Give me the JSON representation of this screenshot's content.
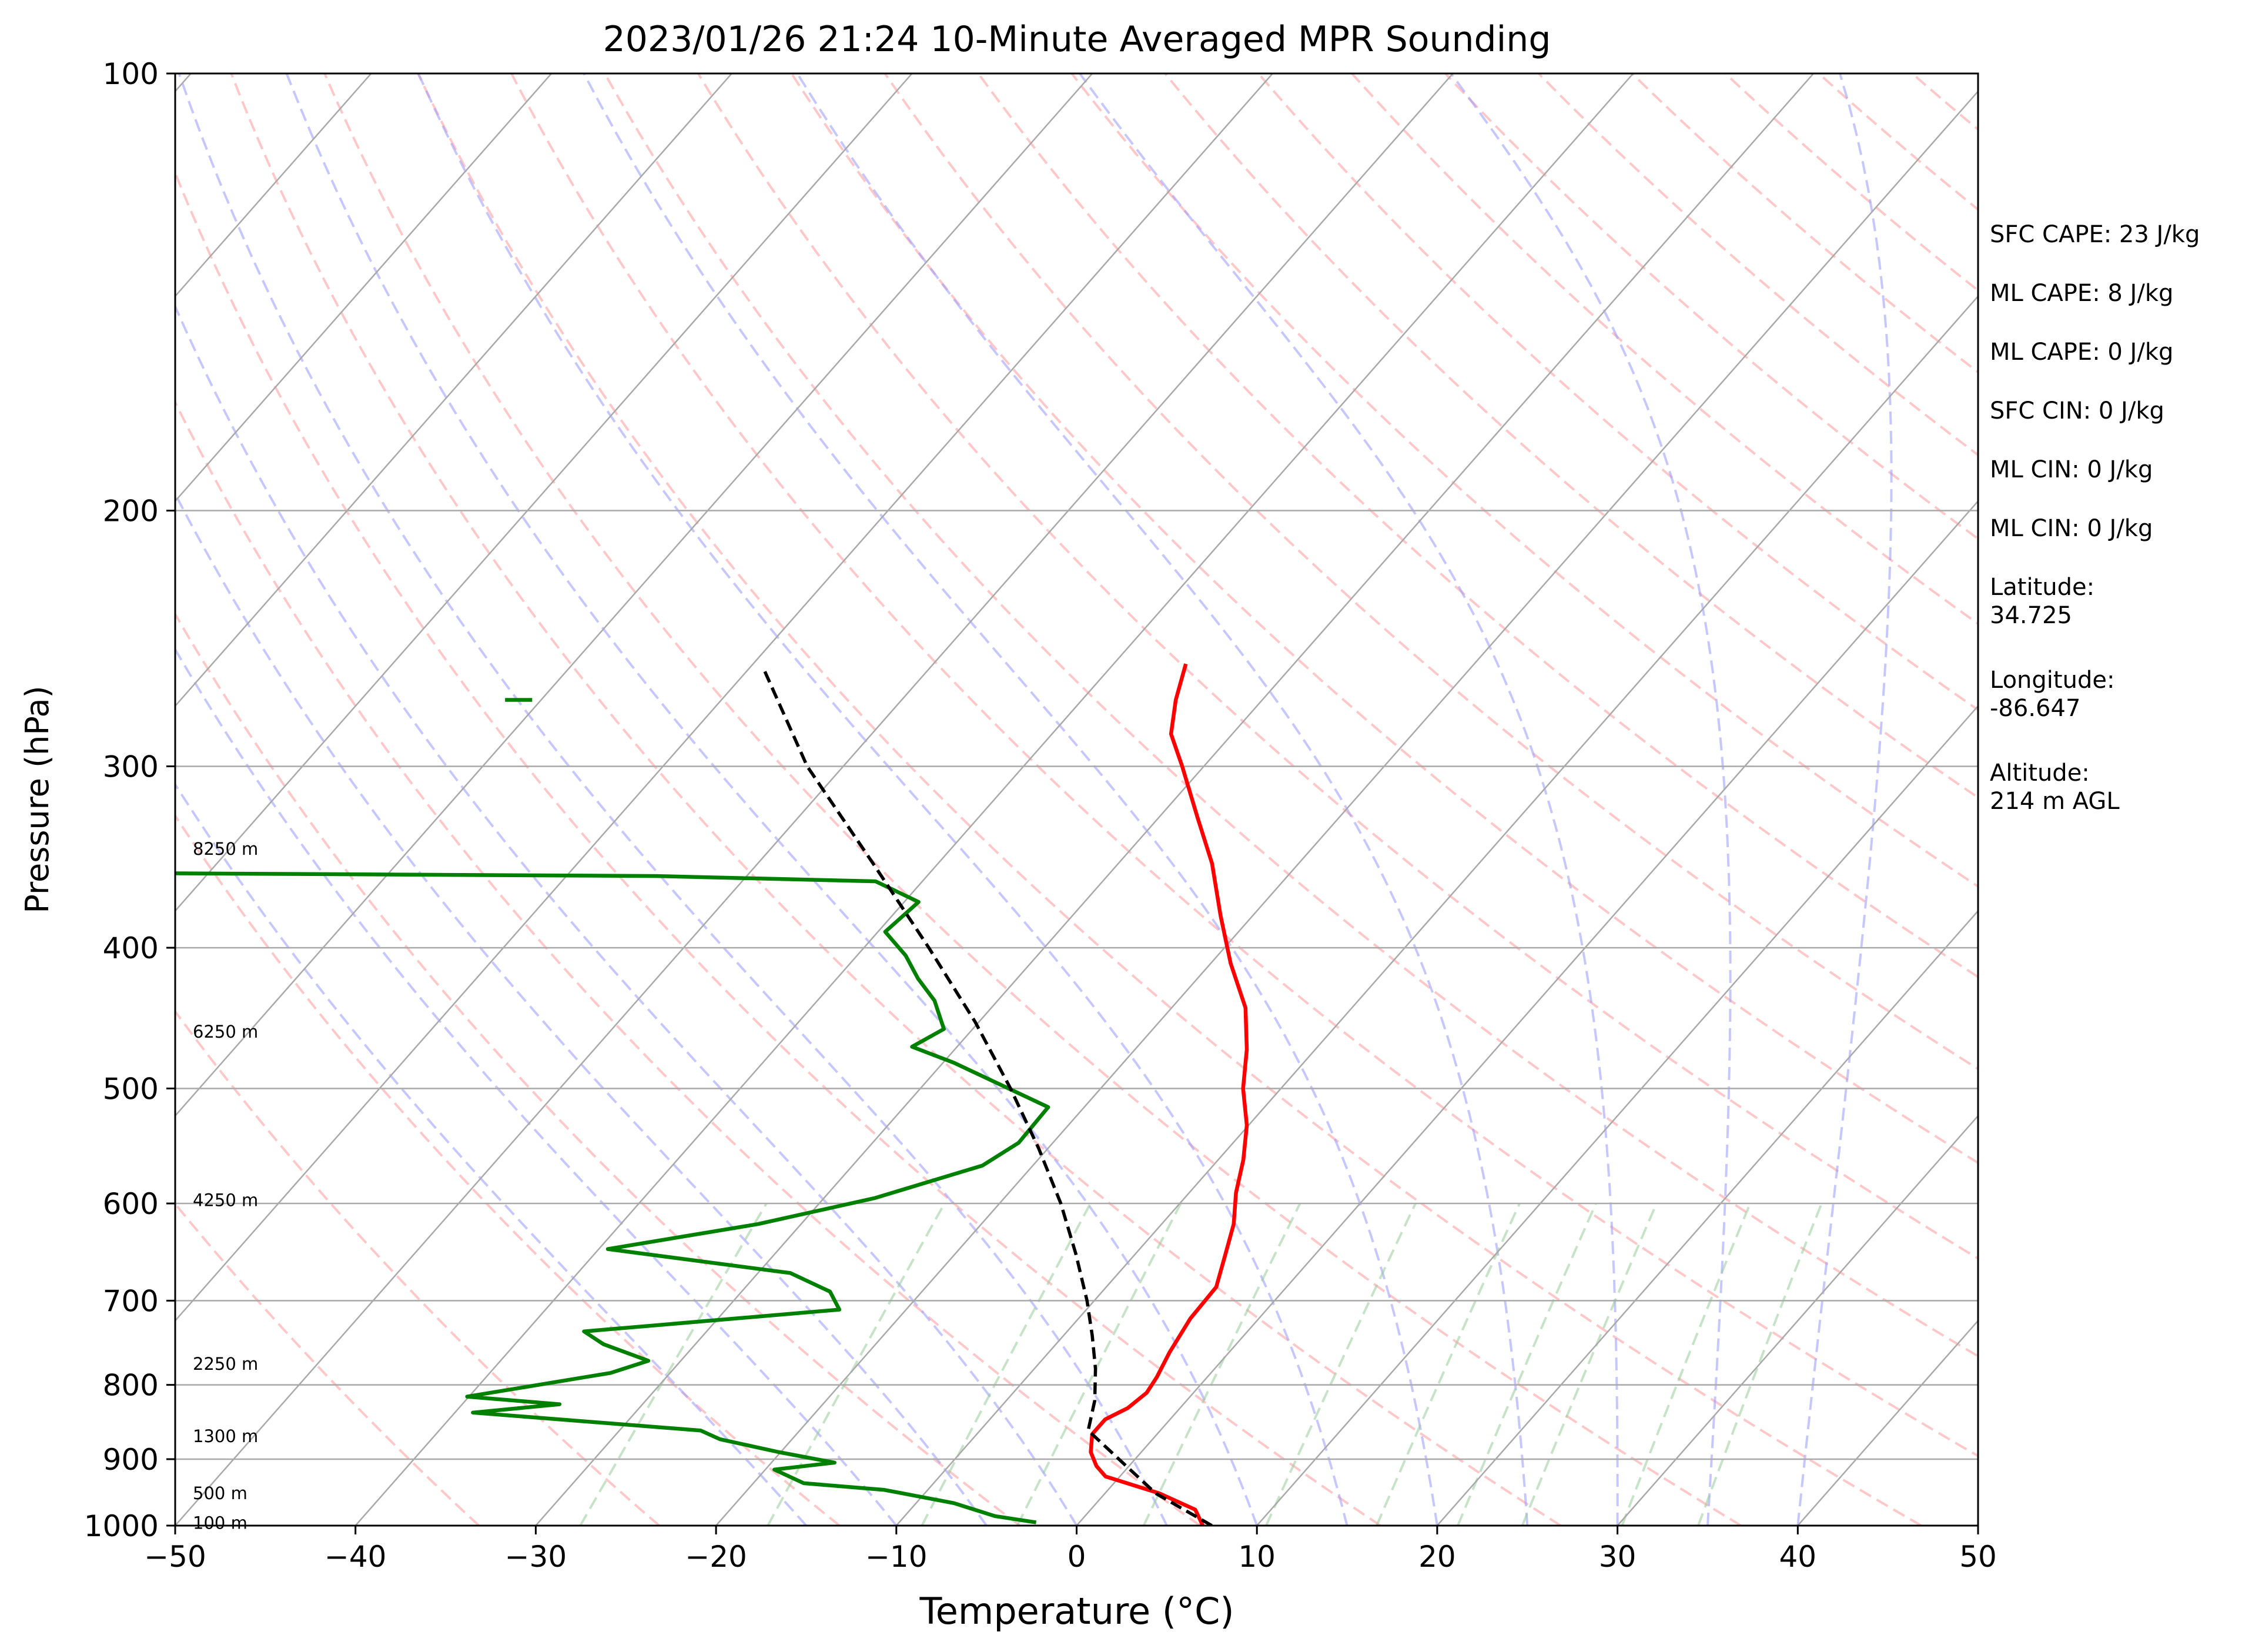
{
  "chart_data": {
    "type": "line",
    "title": "2023/01/26 21:24 10-Minute Averaged MPR Sounding",
    "xlabel": "Temperature (°C)",
    "ylabel": "Pressure (hPa)",
    "xlim": [
      -50,
      50
    ],
    "ylim": [
      1000,
      100
    ],
    "y_scale": "log",
    "skew": "skew-T log-p",
    "x_ticks": [
      "−50",
      "−40",
      "−30",
      "−20",
      "−10",
      "0",
      "10",
      "20",
      "30",
      "40",
      "50"
    ],
    "x_tick_values": [
      -50,
      -40,
      -30,
      -20,
      -10,
      0,
      10,
      20,
      30,
      40,
      50
    ],
    "y_ticks": [
      "1000",
      "900",
      "800",
      "700",
      "600",
      "500",
      "400",
      "300",
      "200",
      "100"
    ],
    "y_tick_values": [
      1000,
      900,
      800,
      700,
      600,
      500,
      400,
      300,
      200,
      100
    ],
    "grid": true,
    "colors": {
      "temperature": "#ff0000",
      "dewpoint": "#008000",
      "parcel": "#000000",
      "isotherm": "#a9a9a9",
      "isobar": "#a9a9a9",
      "dry_adiabat": "#ff9999",
      "moist_adiabat": "#9999ff",
      "mixing_ratio": "#99cc99"
    },
    "series": [
      {
        "key": "temperature",
        "points": [
          {
            "p": 1000,
            "t": 7.0
          },
          {
            "p": 975,
            "t": 5.8
          },
          {
            "p": 950,
            "t": 3.0
          },
          {
            "p": 925,
            "t": -0.8
          },
          {
            "p": 910,
            "t": -1.8
          },
          {
            "p": 890,
            "t": -2.8
          },
          {
            "p": 865,
            "t": -3.6
          },
          {
            "p": 845,
            "t": -3.6
          },
          {
            "p": 830,
            "t": -2.9
          },
          {
            "p": 810,
            "t": -2.6
          },
          {
            "p": 790,
            "t": -2.8
          },
          {
            "p": 760,
            "t": -3.3
          },
          {
            "p": 720,
            "t": -3.8
          },
          {
            "p": 685,
            "t": -3.9
          },
          {
            "p": 650,
            "t": -5.0
          },
          {
            "p": 620,
            "t": -6.0
          },
          {
            "p": 590,
            "t": -7.4
          },
          {
            "p": 560,
            "t": -8.6
          },
          {
            "p": 530,
            "t": -10.1
          },
          {
            "p": 500,
            "t": -12.1
          },
          {
            "p": 470,
            "t": -13.8
          },
          {
            "p": 440,
            "t": -15.9
          },
          {
            "p": 410,
            "t": -18.9
          },
          {
            "p": 380,
            "t": -21.8
          },
          {
            "p": 350,
            "t": -24.8
          },
          {
            "p": 325,
            "t": -27.9
          },
          {
            "p": 300,
            "t": -31.2
          },
          {
            "p": 285,
            "t": -33.4
          },
          {
            "p": 270,
            "t": -34.8
          },
          {
            "p": 255,
            "t": -36.0
          }
        ]
      },
      {
        "key": "dewpoint",
        "points": [
          {
            "p": 995,
            "t": -2.4
          },
          {
            "p": 985,
            "t": -5.0
          },
          {
            "p": 965,
            "t": -7.9
          },
          {
            "p": 945,
            "t": -12.4
          },
          {
            "p": 935,
            "t": -17.2
          },
          {
            "p": 915,
            "t": -19.5
          },
          {
            "p": 905,
            "t": -16.5
          },
          {
            "p": 890,
            "t": -20.1
          },
          {
            "p": 872,
            "t": -24.0
          },
          {
            "p": 860,
            "t": -25.5
          },
          {
            "p": 836,
            "t": -39.0
          },
          {
            "p": 825,
            "t": -34.6
          },
          {
            "p": 815,
            "t": -40.1
          },
          {
            "p": 785,
            "t": -33.3
          },
          {
            "p": 770,
            "t": -31.8
          },
          {
            "p": 750,
            "t": -35.1
          },
          {
            "p": 735,
            "t": -36.8
          },
          {
            "p": 710,
            "t": -23.7
          },
          {
            "p": 690,
            "t": -25.1
          },
          {
            "p": 670,
            "t": -28.2
          },
          {
            "p": 645,
            "t": -39.5
          },
          {
            "p": 620,
            "t": -32.4
          },
          {
            "p": 595,
            "t": -27.2
          },
          {
            "p": 565,
            "t": -22.8
          },
          {
            "p": 545,
            "t": -21.9
          },
          {
            "p": 515,
            "t": -22.0
          },
          {
            "p": 480,
            "t": -29.4
          },
          {
            "p": 468,
            "t": -32.5
          },
          {
            "p": 455,
            "t": -31.6
          },
          {
            "p": 435,
            "t": -33.5
          },
          {
            "p": 420,
            "t": -35.5
          },
          {
            "p": 405,
            "t": -37.3
          },
          {
            "p": 390,
            "t": -39.6
          },
          {
            "p": 372,
            "t": -39.2
          },
          {
            "p": 360,
            "t": -42.6
          },
          {
            "p": 357,
            "t": -55.0
          },
          {
            "p": 355,
            "t": -90.0
          }
        ]
      },
      {
        "key": "dewpoint",
        "points": [
          {
            "p": 270,
            "t": -72.0
          },
          {
            "p": 270,
            "t": -70.5
          }
        ]
      },
      {
        "key": "parcel",
        "points": [
          {
            "p": 1000,
            "t": 7.5
          },
          {
            "p": 950,
            "t": 2.8
          },
          {
            "p": 900,
            "t": -0.9
          },
          {
            "p": 860,
            "t": -4.0
          },
          {
            "p": 820,
            "t": -5.1
          },
          {
            "p": 780,
            "t": -6.6
          },
          {
            "p": 740,
            "t": -8.4
          },
          {
            "p": 700,
            "t": -10.4
          },
          {
            "p": 650,
            "t": -13.3
          },
          {
            "p": 600,
            "t": -16.6
          },
          {
            "p": 550,
            "t": -20.5
          },
          {
            "p": 500,
            "t": -25.0
          },
          {
            "p": 450,
            "t": -30.2
          },
          {
            "p": 400,
            "t": -36.4
          },
          {
            "p": 350,
            "t": -43.6
          },
          {
            "p": 300,
            "t": -52.0
          },
          {
            "p": 258,
            "t": -59.0
          }
        ]
      }
    ],
    "height_labels": [
      {
        "text": "100 m",
        "p": 996
      },
      {
        "text": "500 m",
        "p": 950
      },
      {
        "text": "1300 m",
        "p": 868
      },
      {
        "text": "2250 m",
        "p": 774
      },
      {
        "text": "4250 m",
        "p": 597
      },
      {
        "text": "6250 m",
        "p": 457
      },
      {
        "text": "8250 m",
        "p": 342
      }
    ],
    "info_panel": [
      {
        "lines": [
          "SFC CAPE: 23 J/kg"
        ]
      },
      {
        "lines": [
          "ML CAPE: 8 J/kg"
        ]
      },
      {
        "lines": [
          "ML CAPE: 0 J/kg"
        ]
      },
      {
        "lines": [
          "SFC CIN: 0 J/kg"
        ]
      },
      {
        "lines": [
          "ML CIN: 0 J/kg"
        ]
      },
      {
        "lines": [
          "ML CIN: 0 J/kg"
        ]
      },
      {
        "lines": [
          "Latitude:",
          "34.725"
        ]
      },
      {
        "lines": [
          "Longitude:",
          "-86.647"
        ]
      },
      {
        "lines": [
          "Altitude:",
          "214 m AGL"
        ]
      }
    ]
  }
}
